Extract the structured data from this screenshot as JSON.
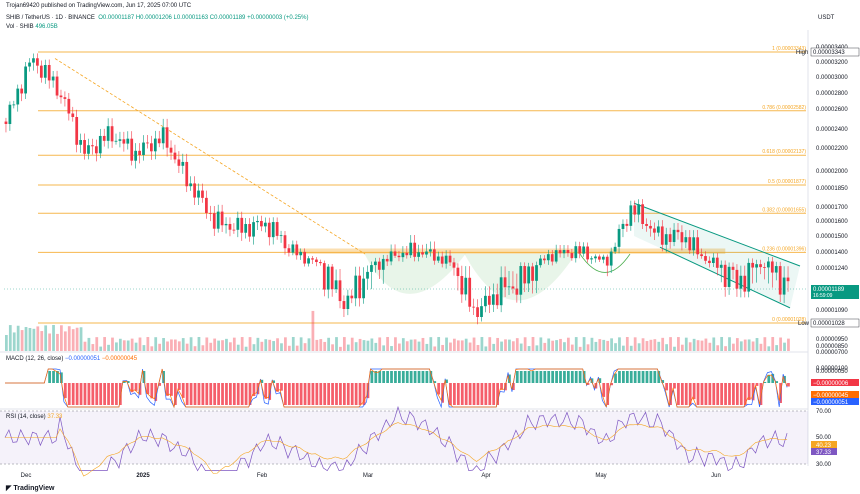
{
  "header": {
    "publisher": "Trojan69420 published on TradingView.com, Jun 17, 2025 07:00 UTC",
    "symbol": "SHIB / TetherUS · 1D · BINANCE",
    "ohlc": "O0.00001187  H0.00001206  L0.00001163  C0.00001189  +0.00000003 (+0.25%)",
    "vol_label": "Vol · SHIB",
    "vol_value": "496.05B",
    "currency": "USDT"
  },
  "price_axis": [
    "0.00003400",
    "0.00003343",
    "0.00003200",
    "0.00003000",
    "0.00002800",
    "0.00002600",
    "0.00002400",
    "0.00002200",
    "0.00002000",
    "0.00001850",
    "0.00001700",
    "0.00001600",
    "0.00001500",
    "0.00001400",
    "0.00001240",
    "0.00001189",
    "0.00001090",
    "0.00001028",
    "0.00000950",
    "0.00000850",
    "0.00000700"
  ],
  "tags": {
    "high_label": "High",
    "high_value": "0.00003343",
    "last_value": "0.00001189",
    "countdown": "16:59:09",
    "low_label": "Low",
    "low_value": "0.00001028"
  },
  "fib_levels": [
    {
      "label": "1 (0.00003343)",
      "price": 3.343e-05
    },
    {
      "label": "0.786 (0.00002582)",
      "price": 2.582e-05
    },
    {
      "label": "0.618 (0.00002137)",
      "price": 2.137e-05
    },
    {
      "label": "0.5 (0.00001877)",
      "price": 1.877e-05
    },
    {
      "label": "0.382 (0.00001655)",
      "price": 1.655e-05
    },
    {
      "label": "0.236 (0.00001396)",
      "price": 1.396e-05
    },
    {
      "label": "0 (0.00001028)",
      "price": 1.028e-05
    }
  ],
  "macd": {
    "title": "MACD (12, 26, close)",
    "macd_value": "−0.00000051",
    "signal_value": "−0.00000045",
    "axis": [
      "0.00000100",
      "0.00000050",
      "−0.00000006",
      "−0.00000045",
      "−0.00000051"
    ]
  },
  "rsi": {
    "title": "RSI (14, close)",
    "value1": "37.33",
    "value2": "40.23",
    "axis": [
      "70.00",
      "50.00",
      "40.23",
      "37.33",
      "30.00"
    ]
  },
  "time_axis": [
    "Dec",
    "2025",
    "Feb",
    "Mar",
    "Apr",
    "May",
    "Jun"
  ],
  "footer": "TradingView",
  "colors": {
    "up": "#089981",
    "down": "#f23645",
    "fib": "#f5a623",
    "channel": "#089981",
    "cup": "#4caf50",
    "macd": "#2962ff",
    "signal": "#ff6d00",
    "rsi": "#7e57c2"
  },
  "chart_data": {
    "type": "candlestick",
    "title": "SHIB / TetherUS · 1D · BINANCE",
    "y_range": [
      7e-06,
      3.4e-05
    ],
    "x_labels": [
      "Dec",
      "2025",
      "Feb",
      "Mar",
      "Apr",
      "May",
      "Jun"
    ],
    "anchors": [
      [
        "Nov 25",
        2.45e-05
      ],
      [
        "Dec 5",
        3.25e-05
      ],
      [
        "Dec 12",
        2.85e-05
      ],
      [
        "Dec 20",
        2.15e-05
      ],
      [
        "Jan 5",
        2.35e-05
      ],
      [
        "Jan 12",
        2.15e-05
      ],
      [
        "Jan 20",
        2.32e-05
      ],
      [
        "Jan 28",
        1.9e-05
      ],
      [
        "Feb 3",
        1.6e-05
      ],
      [
        "Feb 10",
        1.55e-05
      ],
      [
        "Feb 20",
        1.58e-05
      ],
      [
        "Feb 28",
        1.4e-05
      ],
      [
        "Mar 4",
        1.28e-05
      ],
      [
        "Mar 11",
        1.12e-05
      ],
      [
        "Mar 18",
        1.25e-05
      ],
      [
        "Mar 25",
        1.38e-05
      ],
      [
        "Mar 28",
        1.4e-05
      ],
      [
        "Apr 2",
        1.3e-05
      ],
      [
        "Apr 7",
        1.08e-05
      ],
      [
        "Apr 12",
        1.18e-05
      ],
      [
        "Apr 20",
        1.22e-05
      ],
      [
        "Apr 25",
        1.38e-05
      ],
      [
        "May 2",
        1.4e-05
      ],
      [
        "May 8",
        1.3e-05
      ],
      [
        "May 12",
        1.7e-05
      ],
      [
        "May 18",
        1.5e-05
      ],
      [
        "May 25",
        1.5e-05
      ],
      [
        "Jun 1",
        1.3e-05
      ],
      [
        "Jun 5",
        1.2e-05
      ],
      [
        "Jun 10",
        1.28e-05
      ],
      [
        "Jun 17",
        1.19e-05
      ]
    ],
    "volume_unit": "SHIB",
    "macd_range": [
      -1.5e-06,
      1.2e-06
    ],
    "rsi_range": [
      25,
      80
    ]
  }
}
